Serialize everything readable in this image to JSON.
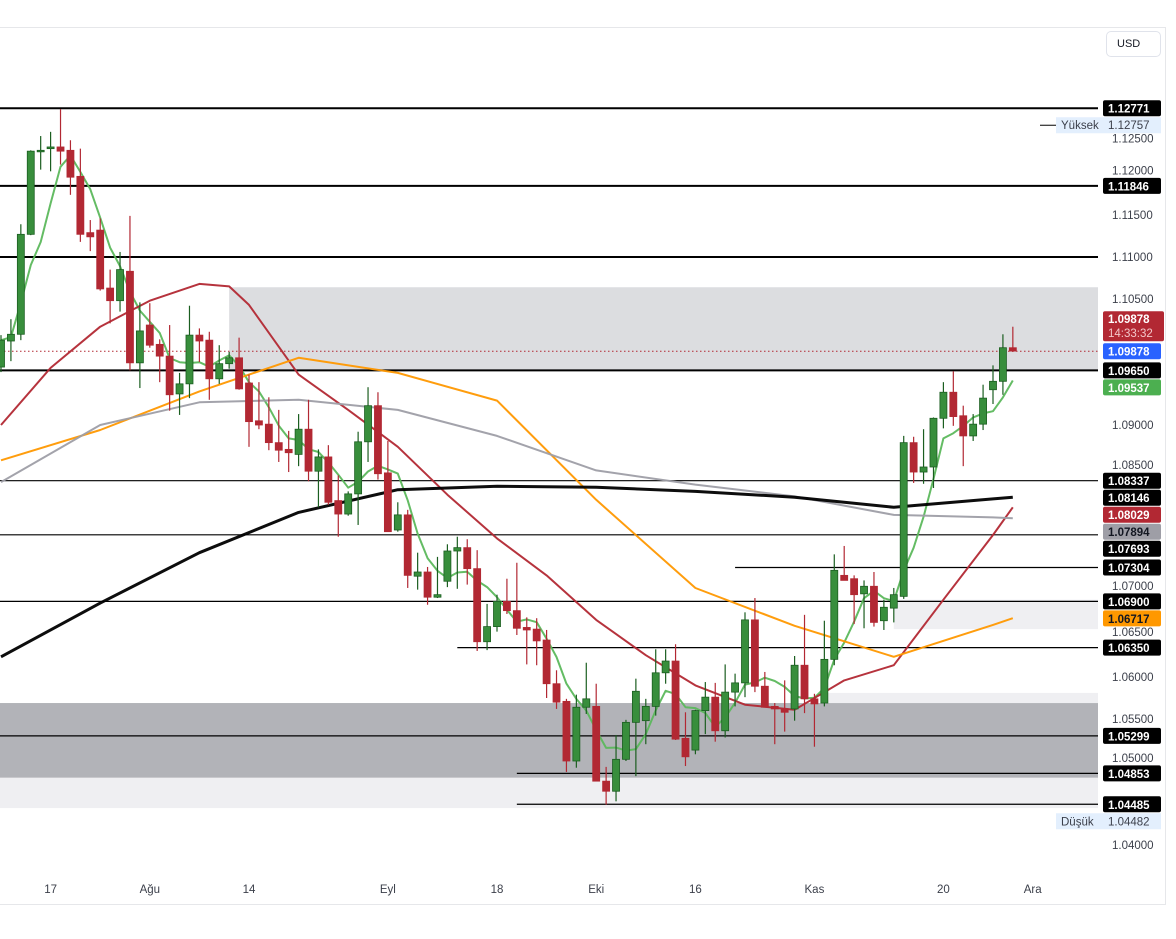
{
  "currency_button": "USD",
  "chart_data": {
    "type": "candlestick",
    "ylim": [
      1.0355,
      1.1335
    ],
    "y_ticks": [
      "1.12500",
      "1.12000",
      "1.11500",
      "1.11000",
      "1.10500",
      "1.09000",
      "1.08500",
      "1.07000",
      "1.06500",
      "1.06000",
      "1.05500",
      "1.05000",
      "1.04000"
    ],
    "x_ticks": [
      {
        "label": "17",
        "index": 5
      },
      {
        "label": "Ağu",
        "index": 15
      },
      {
        "label": "14",
        "index": 25
      },
      {
        "label": "Eyl",
        "index": 39
      },
      {
        "label": "18",
        "index": 50
      },
      {
        "label": "Eki",
        "index": 60
      },
      {
        "label": "16",
        "index": 70
      },
      {
        "label": "Kas",
        "index": 82
      },
      {
        "label": "20",
        "index": 95
      },
      {
        "label": "Ara",
        "index": 104
      }
    ],
    "candles_ohlc": [
      [
        1.0969,
        1.1007,
        1.0963,
        1.1001
      ],
      [
        1.1,
        1.1026,
        1.0976,
        1.1008
      ],
      [
        1.1008,
        1.1139,
        1.1001,
        1.1127
      ],
      [
        1.1127,
        1.1227,
        1.1126,
        1.1226
      ],
      [
        1.1226,
        1.1244,
        1.1204,
        1.1227
      ],
      [
        1.1229,
        1.1249,
        1.1202,
        1.1231
      ],
      [
        1.1231,
        1.1276,
        1.121,
        1.1226
      ],
      [
        1.1227,
        1.1239,
        1.1174,
        1.1195
      ],
      [
        1.1196,
        1.1229,
        1.1118,
        1.1127
      ],
      [
        1.1129,
        1.1144,
        1.1107,
        1.1124
      ],
      [
        1.1132,
        1.1146,
        1.106,
        1.1062
      ],
      [
        1.1063,
        1.1085,
        1.1021,
        1.1048
      ],
      [
        1.1048,
        1.1106,
        1.1035,
        1.1085
      ],
      [
        1.1083,
        1.1149,
        1.0965,
        1.0974
      ],
      [
        1.0974,
        1.1046,
        1.0944,
        1.1012
      ],
      [
        1.1019,
        1.1045,
        1.0992,
        1.0995
      ],
      [
        1.0996,
        1.1002,
        1.0951,
        1.0982
      ],
      [
        1.0982,
        1.1019,
        1.0917,
        1.0936
      ],
      [
        1.0937,
        1.0962,
        1.0912,
        1.0949
      ],
      [
        1.0949,
        1.1042,
        1.0932,
        1.1007
      ],
      [
        1.1007,
        1.1015,
        1.0975,
        1.1
      ],
      [
        1.1001,
        1.1011,
        1.093,
        1.0955
      ],
      [
        1.0955,
        1.0995,
        1.0949,
        1.0973
      ],
      [
        1.0973,
        1.0987,
        1.0967,
        1.098
      ],
      [
        1.098,
        1.1004,
        1.0942,
        1.0943
      ],
      [
        1.095,
        1.096,
        1.0874,
        1.0904
      ],
      [
        1.0905,
        1.0951,
        1.0895,
        1.09
      ],
      [
        1.0901,
        1.0933,
        1.087,
        1.0879
      ],
      [
        1.0879,
        1.0918,
        1.0856,
        1.087
      ],
      [
        1.0871,
        1.0893,
        1.0844,
        1.0867
      ],
      [
        1.0865,
        1.0913,
        1.0851,
        1.0895
      ],
      [
        1.0895,
        1.093,
        1.0833,
        1.0845
      ],
      [
        1.0845,
        1.0871,
        1.0802,
        1.0862
      ],
      [
        1.0862,
        1.0876,
        1.0805,
        1.0808
      ],
      [
        1.081,
        1.084,
        1.0767,
        1.0794
      ],
      [
        1.0794,
        1.0821,
        1.0792,
        1.0818
      ],
      [
        1.0818,
        1.0892,
        1.0781,
        1.088
      ],
      [
        1.088,
        1.0945,
        1.0856,
        1.0923
      ],
      [
        1.0923,
        1.0939,
        1.0835,
        1.0842
      ],
      [
        1.0843,
        1.0881,
        1.0773,
        1.0773
      ],
      [
        1.0775,
        1.0808,
        1.0773,
        1.0793
      ],
      [
        1.0793,
        1.0799,
        1.0706,
        1.0721
      ],
      [
        1.072,
        1.0748,
        1.0704,
        1.0725
      ],
      [
        1.0725,
        1.0731,
        1.0686,
        1.0695
      ],
      [
        1.0695,
        1.0743,
        1.0694,
        1.0698
      ],
      [
        1.0714,
        1.0758,
        1.0707,
        1.075
      ],
      [
        1.075,
        1.0767,
        1.0705,
        1.0754
      ],
      [
        1.0754,
        1.0764,
        1.071,
        1.0729
      ],
      [
        1.0729,
        1.0751,
        1.0631,
        1.0642
      ],
      [
        1.0642,
        1.0687,
        1.0632,
        1.066
      ],
      [
        1.066,
        1.0698,
        1.0654,
        1.069
      ],
      [
        1.069,
        1.0717,
        1.0675,
        1.0679
      ],
      [
        1.0679,
        1.0736,
        1.065,
        1.0658
      ],
      [
        1.0659,
        1.0671,
        1.0615,
        1.0656
      ],
      [
        1.0657,
        1.067,
        1.0614,
        1.0643
      ],
      [
        1.0644,
        1.0656,
        1.0575,
        1.0592
      ],
      [
        1.0592,
        1.0608,
        1.0562,
        1.057
      ],
      [
        1.0571,
        1.0574,
        1.0487,
        1.05
      ],
      [
        1.05,
        1.0579,
        1.0492,
        1.0564
      ],
      [
        1.0564,
        1.0617,
        1.0556,
        1.0574
      ],
      [
        1.0565,
        1.0592,
        1.0476,
        1.0476
      ],
      [
        1.0476,
        1.0493,
        1.0448,
        1.0464
      ],
      [
        1.0464,
        1.0531,
        1.0452,
        1.0502
      ],
      [
        1.0502,
        1.0549,
        1.05,
        1.0546
      ],
      [
        1.0546,
        1.0598,
        1.0482,
        1.0583
      ],
      [
        1.0548,
        1.0574,
        1.052,
        1.0565
      ],
      [
        1.0565,
        1.0633,
        1.0554,
        1.0605
      ],
      [
        1.0605,
        1.0633,
        1.0592,
        1.0619
      ],
      [
        1.0619,
        1.0639,
        1.0525,
        1.0526
      ],
      [
        1.0527,
        1.0558,
        1.0494,
        1.0505
      ],
      [
        1.0513,
        1.0561,
        1.0508,
        1.056
      ],
      [
        1.056,
        1.0594,
        1.0532,
        1.0576
      ],
      [
        1.0576,
        1.0593,
        1.0523,
        1.0536
      ],
      [
        1.0536,
        1.0615,
        1.0528,
        1.0582
      ],
      [
        1.0582,
        1.0604,
        1.0565,
        1.0593
      ],
      [
        1.0593,
        1.0677,
        1.0576,
        1.0668
      ],
      [
        1.0668,
        1.0694,
        1.0582,
        1.0589
      ],
      [
        1.0589,
        1.0606,
        1.0564,
        1.0564
      ],
      [
        1.0565,
        1.0569,
        1.052,
        1.0562
      ],
      [
        1.0562,
        1.0596,
        1.0535,
        1.0558
      ],
      [
        1.0562,
        1.0625,
        1.0548,
        1.0614
      ],
      [
        1.0614,
        1.0674,
        1.0557,
        1.0574
      ],
      [
        1.0574,
        1.058,
        1.0517,
        1.0568
      ],
      [
        1.0569,
        1.0667,
        1.0565,
        1.0621
      ],
      [
        1.0621,
        1.0746,
        1.0614,
        1.0727
      ],
      [
        1.0721,
        1.0756,
        1.0715,
        1.0715
      ],
      [
        1.0717,
        1.0721,
        1.0663,
        1.0698
      ],
      [
        1.0699,
        1.0715,
        1.0658,
        1.0708
      ],
      [
        1.0708,
        1.0725,
        1.066,
        1.0665
      ],
      [
        1.0667,
        1.0692,
        1.0656,
        1.0683
      ],
      [
        1.0682,
        1.0706,
        1.0665,
        1.0698
      ],
      [
        1.0696,
        1.0887,
        1.0693,
        1.0879
      ],
      [
        1.0879,
        1.0886,
        1.0831,
        1.0844
      ],
      [
        1.0844,
        1.0895,
        1.083,
        1.085
      ],
      [
        1.085,
        1.0909,
        1.0825,
        1.0908
      ],
      [
        1.0908,
        1.0951,
        1.0896,
        1.0939
      ],
      [
        1.0939,
        1.0964,
        1.0899,
        1.091
      ],
      [
        1.0911,
        1.0923,
        1.0851,
        1.0887
      ],
      [
        1.0887,
        1.0913,
        1.0881,
        1.0901
      ],
      [
        1.0901,
        1.0948,
        1.0894,
        1.0932
      ],
      [
        1.0942,
        1.0971,
        1.0925,
        1.0952
      ],
      [
        1.0952,
        1.1008,
        1.0936,
        1.0992
      ],
      [
        1.0992,
        1.1017,
        1.0987,
        1.0988
      ]
    ],
    "moving_averages": [
      {
        "color": "#5cb85c",
        "method": "sma",
        "period": 5
      },
      {
        "color": "#b22833",
        "points": [
          [
            0,
            1.09
          ],
          [
            5,
            1.0968
          ],
          [
            10,
            1.1017
          ],
          [
            15,
            1.1048
          ],
          [
            20,
            1.1068
          ],
          [
            23,
            1.1065
          ],
          [
            25,
            1.1043
          ],
          [
            30,
            1.096
          ],
          [
            35,
            1.0918
          ],
          [
            40,
            1.0874
          ],
          [
            45,
            1.0817
          ],
          [
            50,
            1.0765
          ],
          [
            55,
            1.0721
          ],
          [
            60,
            1.0668
          ],
          [
            65,
            1.0626
          ],
          [
            70,
            1.059
          ],
          [
            75,
            1.0567
          ],
          [
            80,
            1.0561
          ],
          [
            85,
            1.0596
          ],
          [
            90,
            1.0614
          ],
          [
            95,
            1.0692
          ],
          [
            100,
            1.0769
          ],
          [
            102,
            1.0802
          ]
        ]
      },
      {
        "color": "#ff9800",
        "points": [
          [
            0,
            1.0858
          ],
          [
            10,
            1.0894
          ],
          [
            20,
            1.094
          ],
          [
            30,
            1.098
          ],
          [
            40,
            1.0962
          ],
          [
            50,
            1.0929
          ],
          [
            60,
            1.0811
          ],
          [
            70,
            1.0706
          ],
          [
            80,
            1.0661
          ],
          [
            90,
            1.0624
          ],
          [
            100,
            1.0662
          ],
          [
            102,
            1.067
          ]
        ]
      },
      {
        "color": "#9e9ea6",
        "points": [
          [
            0,
            1.0832
          ],
          [
            10,
            1.09
          ],
          [
            20,
            1.0927
          ],
          [
            30,
            1.093
          ],
          [
            40,
            1.0918
          ],
          [
            50,
            1.0887
          ],
          [
            60,
            1.0846
          ],
          [
            70,
            1.0829
          ],
          [
            80,
            1.0815
          ],
          [
            90,
            1.0793
          ],
          [
            100,
            1.079
          ],
          [
            102,
            1.0789
          ]
        ]
      },
      {
        "color": "#000000",
        "points": [
          [
            0,
            1.0624
          ],
          [
            10,
            1.0688
          ],
          [
            20,
            1.0748
          ],
          [
            30,
            1.0796
          ],
          [
            40,
            1.0823
          ],
          [
            50,
            1.0827
          ],
          [
            60,
            1.0826
          ],
          [
            70,
            1.0821
          ],
          [
            80,
            1.0814
          ],
          [
            90,
            1.0802
          ],
          [
            100,
            1.0812
          ],
          [
            102,
            1.0814
          ]
        ]
      }
    ],
    "zones": [
      {
        "from_index": 23,
        "top": 1.1064,
        "bottom": 1.0965,
        "color": "#dcdde0"
      },
      {
        "from_index": null,
        "top": 1.0569,
        "bottom": 1.048,
        "color": "#b2b3b8"
      },
      {
        "from_index": null,
        "top": 1.048,
        "bottom": 1.0444,
        "color": "#efeff2"
      },
      {
        "from_index": 83,
        "top": 1.0581,
        "bottom": 1.0569,
        "color": "#efeff2"
      },
      {
        "from_index": 90,
        "top": 1.0692,
        "bottom": 1.0657,
        "color": "#efeff2"
      }
    ],
    "horizontal_lines": [
      {
        "price": 1.12771,
        "from_index": null,
        "weight": "thick"
      },
      {
        "price": 1.11846,
        "from_index": null,
        "weight": "thick"
      },
      {
        "price": 1.11,
        "from_index": null,
        "weight": "thick"
      },
      {
        "price": 1.0965,
        "from_index": null,
        "weight": "thick"
      },
      {
        "price": 1.08337,
        "from_index": null,
        "weight": "thin"
      },
      {
        "price": 1.07693,
        "from_index": null,
        "weight": "thin"
      },
      {
        "price": 1.07304,
        "from_index": 74,
        "weight": "thin"
      },
      {
        "price": 1.069,
        "from_index": null,
        "weight": "thin"
      },
      {
        "price": 1.0635,
        "from_index": 46,
        "weight": "thin"
      },
      {
        "price": 1.05299,
        "from_index": null,
        "weight": "thin"
      },
      {
        "price": 1.04853,
        "from_index": 52,
        "weight": "thin"
      },
      {
        "price": 1.04485,
        "from_index": 52,
        "weight": "thin"
      }
    ],
    "current_price": {
      "value": "1.09878",
      "countdown": "14:33:32",
      "color": "#b22833"
    },
    "price_badges": [
      {
        "text": "1.12771",
        "bg": "#000000",
        "fg": "#ffffff"
      },
      {
        "text": "1.11846",
        "bg": "#000000",
        "fg": "#ffffff"
      },
      {
        "text": "1.09878",
        "bg": "#2962ff",
        "fg": "#ffffff"
      },
      {
        "text": "1.09650",
        "bg": "#000000",
        "fg": "#ffffff"
      },
      {
        "text": "1.09537",
        "bg": "#4caf50",
        "fg": "#ffffff"
      },
      {
        "text": "1.08337",
        "bg": "#000000",
        "fg": "#ffffff"
      },
      {
        "text": "1.08146",
        "bg": "#000000",
        "fg": "#ffffff"
      },
      {
        "text": "1.08029",
        "bg": "#b22833",
        "fg": "#ffffff"
      },
      {
        "text": "1.07894",
        "bg": "#9e9ea6",
        "fg": "#131722"
      },
      {
        "text": "1.07693",
        "bg": "#000000",
        "fg": "#ffffff"
      },
      {
        "text": "1.07304",
        "bg": "#000000",
        "fg": "#ffffff"
      },
      {
        "text": "1.06900",
        "bg": "#000000",
        "fg": "#ffffff"
      },
      {
        "text": "1.06717",
        "bg": "#ff9800",
        "fg": "#131722"
      },
      {
        "text": "1.06350",
        "bg": "#000000",
        "fg": "#ffffff"
      },
      {
        "text": "1.05299",
        "bg": "#000000",
        "fg": "#ffffff"
      },
      {
        "text": "1.04853",
        "bg": "#000000",
        "fg": "#ffffff"
      },
      {
        "text": "1.04485",
        "bg": "#000000",
        "fg": "#ffffff"
      }
    ],
    "high_label": {
      "label": "Yüksek",
      "value": "1.12757"
    },
    "low_label": {
      "label": "Düşük",
      "value": "1.04482"
    },
    "colors": {
      "up": "#388e3c",
      "up_border": "#1b5e20",
      "down": "#b22833"
    }
  }
}
